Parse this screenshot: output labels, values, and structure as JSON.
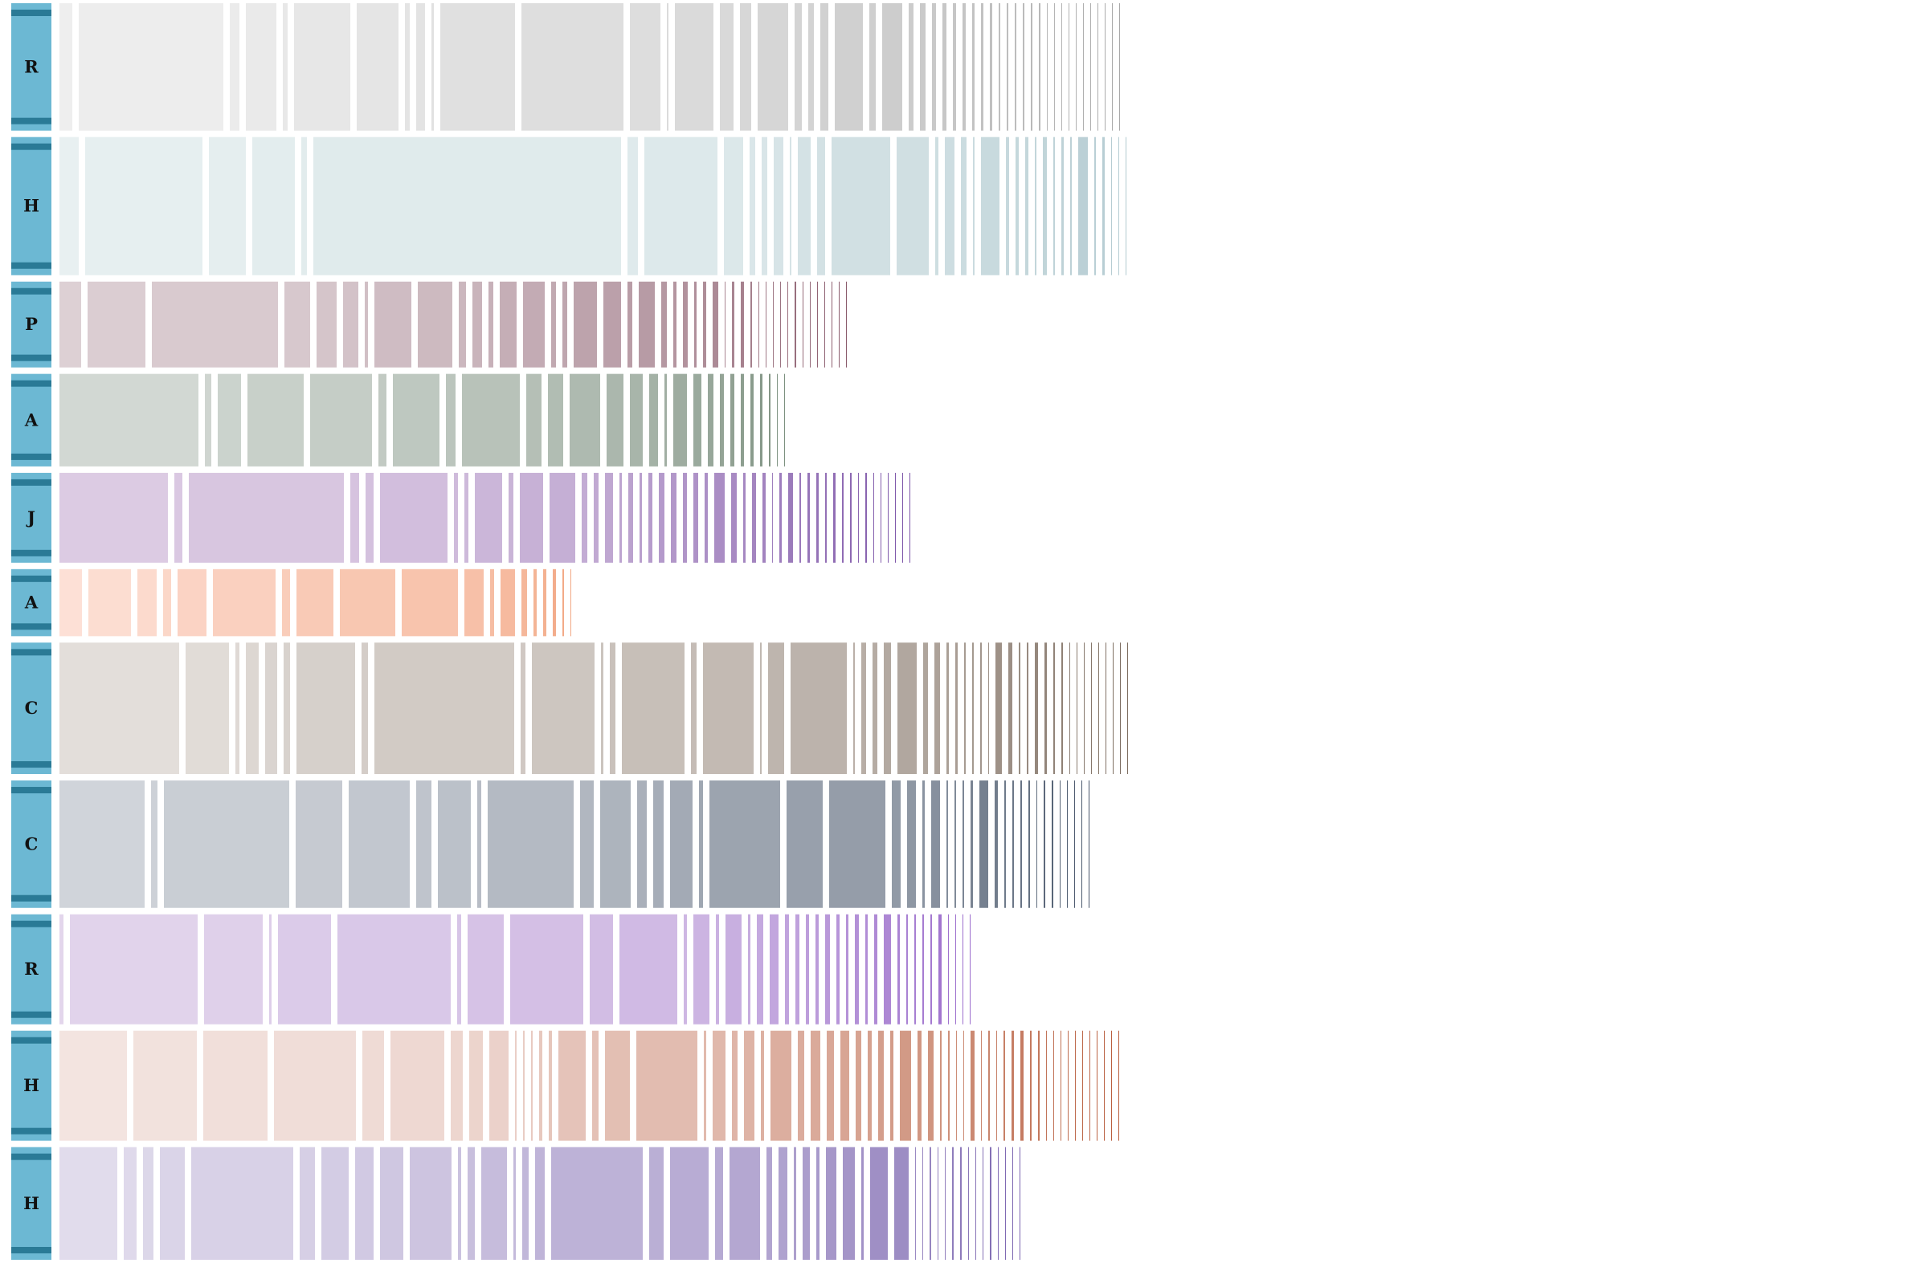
{
  "chart_data": {
    "type": "bar",
    "orientation": "horizontal-stacked-segments",
    "title": "",
    "xlabel": "",
    "ylabel": "",
    "grid": false,
    "legend": "none",
    "label_tab_color": "#6cb8d3",
    "label_tab_stripe_color": "#2a7a96",
    "rows": [
      {
        "label": "R",
        "rel_height": 95,
        "color_start": "#eeeeee",
        "color_end": "#a8a8a8",
        "segments": [
          16,
          180,
          12,
          38,
          6,
          70,
          52,
          6,
          11,
          3,
          93,
          127,
          38,
          2,
          48,
          17,
          14,
          38,
          9,
          7,
          10,
          35,
          8,
          25,
          6,
          7,
          5,
          5,
          4,
          4,
          3,
          3,
          3,
          2,
          2,
          2,
          2,
          2,
          2,
          1,
          1,
          1,
          1,
          1,
          1,
          1,
          1,
          1,
          1,
          1
        ]
      },
      {
        "label": "H",
        "rel_height": 103,
        "color_start": "#e8f0f1",
        "color_end": "#b3cbd1",
        "segments": [
          24,
          146,
          46,
          53,
          7,
          383,
          13,
          91,
          24,
          7,
          7,
          12,
          2,
          16,
          10,
          73,
          40,
          4,
          12,
          7,
          2,
          23,
          4,
          4,
          4,
          2,
          5,
          2,
          3,
          2,
          12,
          2,
          3,
          1,
          1,
          1
        ]
      },
      {
        "label": "P",
        "rel_height": 64,
        "color_start": "#ddd0d4",
        "color_end": "#8a5a6b",
        "segments": [
          27,
          72,
          157,
          32,
          25,
          19,
          4,
          46,
          43,
          9,
          12,
          6,
          21,
          27,
          6,
          6,
          29,
          22,
          6,
          20,
          7,
          4,
          6,
          3,
          4,
          7,
          1,
          3,
          4,
          2,
          1,
          1,
          1,
          1,
          1,
          2,
          1,
          1,
          1,
          1,
          1,
          1,
          1
        ]
      },
      {
        "label": "A",
        "rel_height": 69,
        "color_start": "#d2d8d3",
        "color_end": "#7d9180",
        "segments": [
          173,
          8,
          29,
          70,
          77,
          10,
          58,
          12,
          72,
          19,
          19,
          38,
          21,
          16,
          11,
          3,
          17,
          10,
          7,
          5,
          5,
          4,
          4,
          3,
          2,
          1,
          1
        ]
      },
      {
        "label": "J",
        "rel_height": 67,
        "color_start": "#dccbe3",
        "color_end": "#7c54a8",
        "segments": [
          135,
          10,
          193,
          11,
          10,
          84,
          5,
          5,
          34,
          6,
          29,
          32,
          7,
          6,
          10,
          3,
          6,
          3,
          5,
          7,
          7,
          5,
          6,
          4,
          13,
          7,
          3,
          5,
          4,
          1,
          3,
          6,
          2,
          3,
          3,
          2,
          3,
          2,
          2,
          1,
          2,
          1,
          1,
          1,
          1,
          1,
          1
        ]
      },
      {
        "label": "A",
        "rel_height": 50,
        "color_start": "#fde0d6",
        "color_end": "#f2a783",
        "segments": [
          28,
          53,
          24,
          10,
          36,
          78,
          10,
          46,
          69,
          70,
          24,
          5,
          18,
          7,
          4,
          4,
          4,
          2,
          1
        ]
      },
      {
        "label": "C",
        "rel_height": 98,
        "color_start": "#e3deda",
        "color_end": "#7b6b5e",
        "segments": [
          149,
          54,
          5,
          16,
          15,
          8,
          73,
          8,
          174,
          6,
          78,
          3,
          7,
          78,
          7,
          63,
          2,
          20,
          70,
          2,
          6,
          6,
          9,
          24,
          6,
          7,
          3,
          3,
          2,
          2,
          2,
          1,
          8,
          5,
          2,
          2,
          4,
          3,
          2,
          2,
          1,
          1,
          1,
          1,
          1,
          1,
          1,
          1,
          1
        ]
      },
      {
        "label": "C",
        "rel_height": 95,
        "color_start": "#d0d4da",
        "color_end": "#48566a",
        "segments": [
          106,
          8,
          156,
          58,
          76,
          19,
          41,
          5,
          107,
          17,
          38,
          12,
          13,
          28,
          5,
          88,
          45,
          70,
          11,
          11,
          3,
          11,
          2,
          2,
          2,
          3,
          11,
          4,
          2,
          2,
          2,
          2,
          1,
          2,
          2,
          1,
          1,
          1,
          1,
          1
        ]
      },
      {
        "label": "R",
        "rel_height": 82,
        "color_start": "#e3d6ec",
        "color_end": "#9a6bcc",
        "segments": [
          5,
          159,
          73,
          3,
          66,
          141,
          5,
          45,
          91,
          29,
          72,
          4,
          20,
          4,
          20,
          3,
          8,
          11,
          5,
          5,
          4,
          4,
          6,
          4,
          3,
          5,
          3,
          4,
          9,
          3,
          2,
          2,
          2,
          2,
          4,
          1,
          1,
          1,
          1
        ]
      },
      {
        "label": "H",
        "rel_height": 82,
        "color_start": "#f3e4e0",
        "color_end": "#b85d3d",
        "segments": [
          84,
          79,
          80,
          102,
          27,
          67,
          15,
          17,
          24,
          2,
          2,
          2,
          4,
          4,
          34,
          8,
          31,
          76,
          3,
          16,
          7,
          13,
          4,
          26,
          8,
          12,
          9,
          11,
          7,
          5,
          7,
          4,
          14,
          5,
          7,
          2,
          2,
          1,
          1,
          5,
          1,
          2,
          1,
          2,
          3,
          4,
          2,
          2,
          1,
          1,
          1,
          1,
          1,
          1,
          1,
          1,
          1,
          1,
          1
        ]
      },
      {
        "label": "H",
        "rel_height": 84,
        "color_start": "#e1dcec",
        "color_end": "#7b65b0",
        "segments": [
          72,
          16,
          13,
          31,
          127,
          19,
          34,
          23,
          29,
          52,
          4,
          9,
          32,
          3,
          8,
          12,
          114,
          18,
          48,
          10,
          38,
          7,
          11,
          3,
          9,
          4,
          13,
          15,
          3,
          22,
          18,
          1,
          1,
          2,
          1,
          1,
          2,
          2,
          1,
          1,
          1,
          2,
          1,
          1,
          1,
          1
        ]
      }
    ]
  }
}
